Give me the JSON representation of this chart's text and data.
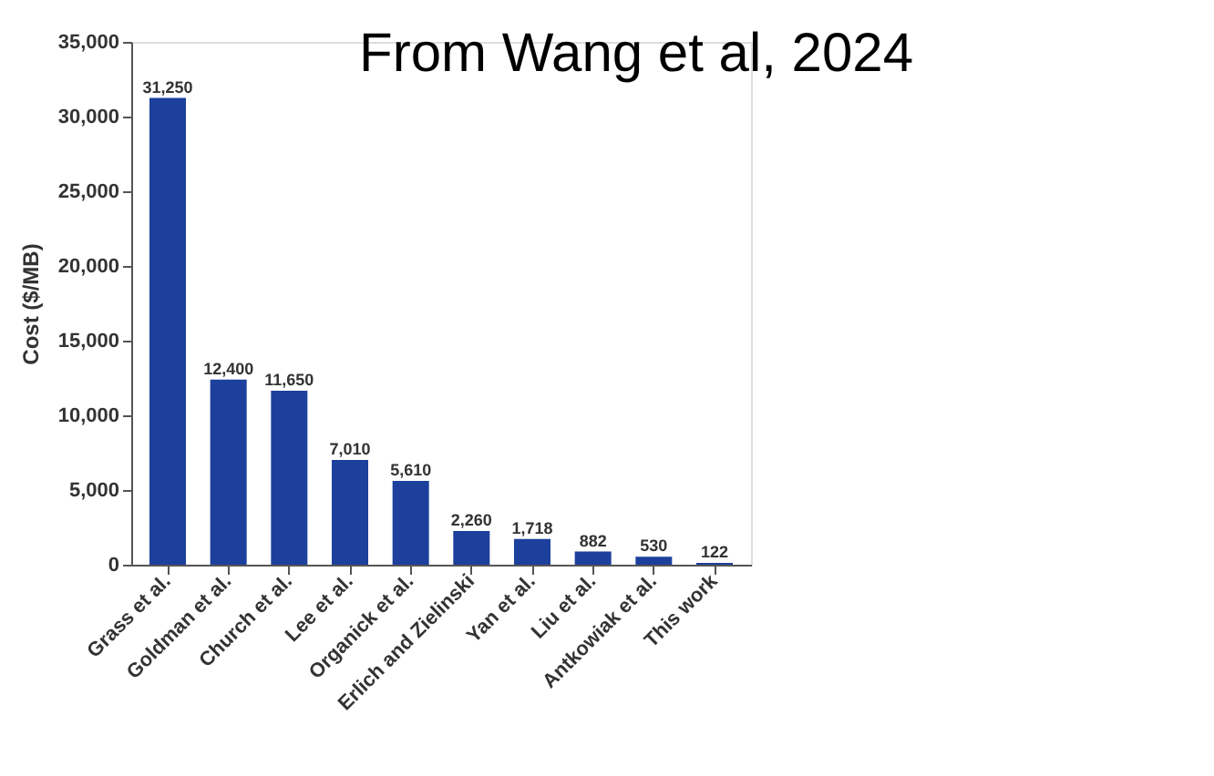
{
  "chart_data": {
    "type": "bar",
    "categories": [
      "Grass et al.",
      "Goldman et al.",
      "Church et al.",
      "Lee et al.",
      "Organick et al.",
      "Erlich and Zielinski",
      "Yan et al.",
      "Liu et al.",
      "Antkowiak et al.",
      "This work"
    ],
    "values": [
      31250,
      12400,
      11650,
      7010,
      5610,
      2260,
      1718,
      882,
      530,
      122
    ],
    "color": "#1c409c",
    "ylabel": "Cost ($/MB)",
    "ylim": [
      0,
      35000
    ],
    "yticks": [
      0,
      {
        "value": 5000,
        "label": "5,000"
      },
      {
        "value": 10000,
        "label": "10,000"
      },
      {
        "value": 15000,
        "label": "15,000"
      },
      {
        "value": 20000,
        "label": "20,000"
      },
      {
        "value": 25000,
        "label": "25,000"
      },
      {
        "value": 30000,
        "label": "30,000"
      },
      {
        "value": 35000,
        "label": "35,000"
      }
    ],
    "value_labels": [
      "31,250",
      "12,400",
      "11,650",
      "7,010",
      "5,610",
      "2,260",
      "1,718",
      "882",
      "530",
      "122"
    ],
    "grid": false,
    "annotations": [
      "From Wang et al, 2024"
    ]
  }
}
